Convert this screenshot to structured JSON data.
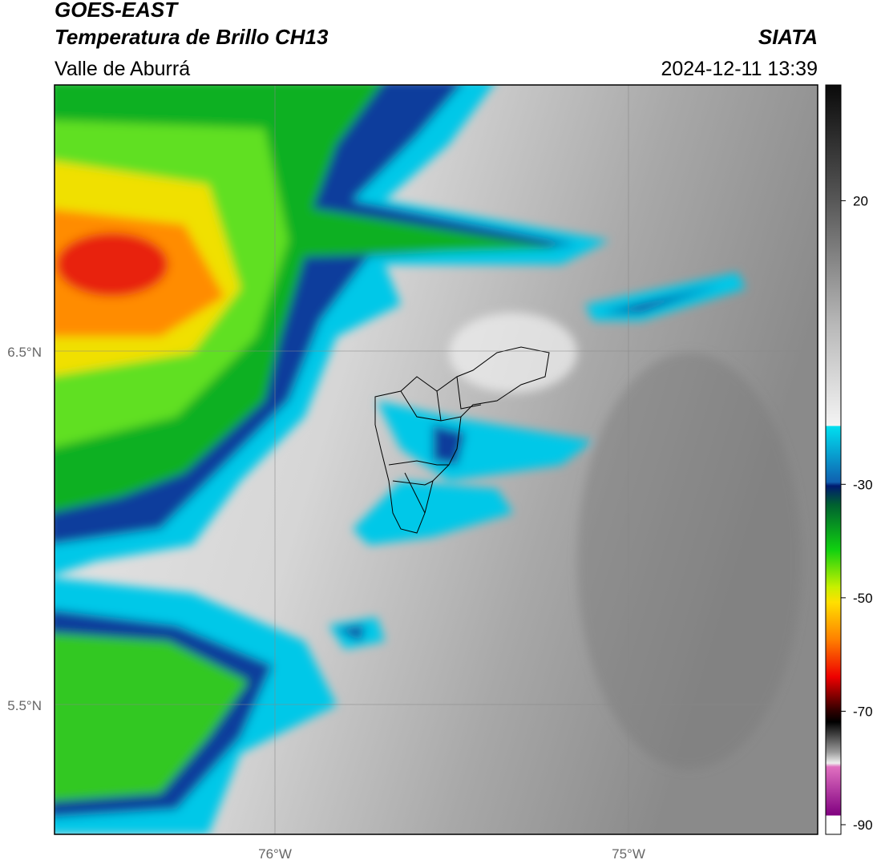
{
  "header": {
    "title": "GOES-EAST",
    "subtitle": "Temperatura de Brillo CH13",
    "region": "Valle de Aburrá",
    "source": "SIATA",
    "timestamp": "2024-12-11 13:39"
  },
  "map": {
    "lat_labels": [
      "6.5°N",
      "5.5°N"
    ],
    "lon_labels": [
      "76°W",
      "75°W"
    ]
  },
  "colorbar": {
    "range": [
      -91.7,
      40.4
    ],
    "ticks": [
      20,
      -30,
      -50,
      -70,
      -90
    ]
  }
}
